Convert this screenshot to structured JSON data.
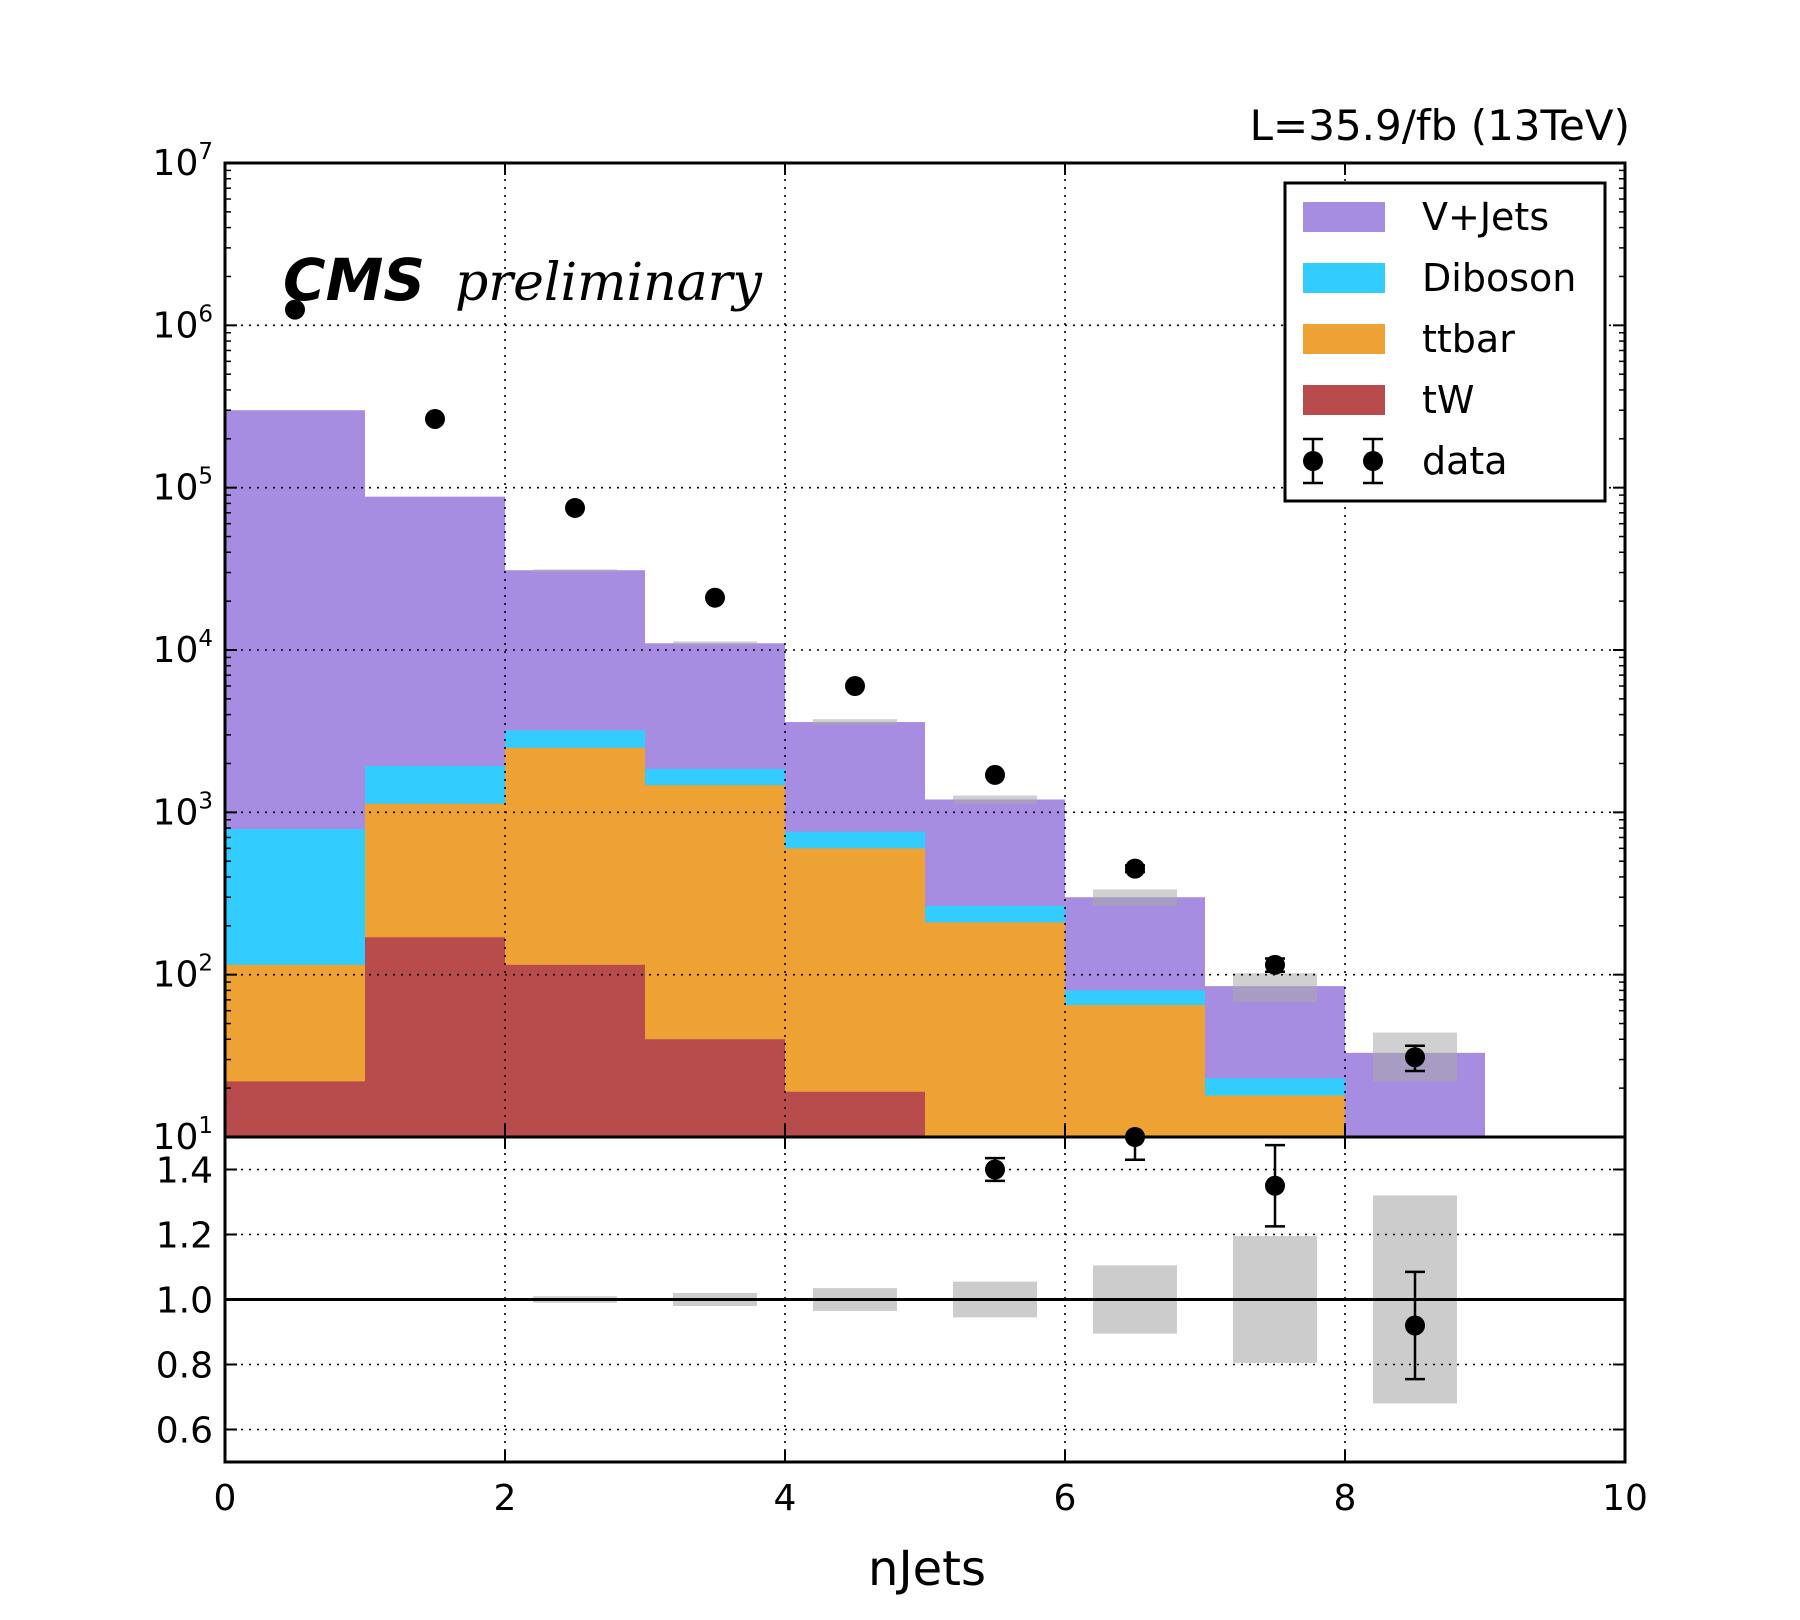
{
  "lumi_text": "L=35.9/fb (13TeV)",
  "experiment": "CMS",
  "status": "preliminary",
  "xlabel": "nJets",
  "colors": {
    "tW": "#b84c4c",
    "ttbar": "#eea233",
    "Diboson": "#33ccff",
    "VJets": "#a78de2",
    "data": "#000000",
    "unc_band": "#aaaaaa"
  },
  "legend": [
    {
      "label": "V+Jets",
      "key": "VJets",
      "kind": "patch"
    },
    {
      "label": "Diboson",
      "key": "Diboson",
      "kind": "patch"
    },
    {
      "label": "ttbar",
      "key": "ttbar",
      "kind": "patch"
    },
    {
      "label": "tW",
      "key": "tW",
      "kind": "patch"
    },
    {
      "label": "data",
      "key": "data",
      "kind": "marker"
    }
  ],
  "chart_data": [
    {
      "type": "bar",
      "subtype": "stacked histogram with data points",
      "yscale": "log",
      "bin_edges": [
        0,
        1,
        2,
        3,
        4,
        5,
        6,
        7,
        8,
        9
      ],
      "xlim": [
        0,
        10
      ],
      "ylim": [
        10,
        10000000
      ],
      "xticks": [
        "0",
        "2",
        "4",
        "6",
        "8",
        "10"
      ],
      "yticks": [
        {
          "base": "10",
          "exp": "1"
        },
        {
          "base": "10",
          "exp": "2"
        },
        {
          "base": "10",
          "exp": "3"
        },
        {
          "base": "10",
          "exp": "4"
        },
        {
          "base": "10",
          "exp": "5"
        },
        {
          "base": "10",
          "exp": "6"
        },
        {
          "base": "10",
          "exp": "7"
        }
      ],
      "grid": true,
      "legend_position": "top-right",
      "series_cumulative_top": [
        {
          "name": "tW",
          "values": [
            22,
            170,
            115,
            40,
            19,
            0,
            0,
            0,
            0
          ]
        },
        {
          "name": "ttbar",
          "values": [
            115,
            1130,
            2500,
            1470,
            600,
            210,
            65,
            18,
            0
          ]
        },
        {
          "name": "Diboson",
          "values": [
            790,
            1930,
            3200,
            1850,
            760,
            265,
            80,
            23,
            0
          ]
        },
        {
          "name": "V+Jets",
          "values": [
            300000,
            88000,
            31000,
            11000,
            3600,
            1200,
            300,
            85,
            33
          ]
        }
      ],
      "mc_uncertainty": [
        {
          "bin": 2,
          "low": 30800,
          "high": 31400
        },
        {
          "bin": 3,
          "low": 10700,
          "high": 11300
        },
        {
          "bin": 4,
          "low": 3450,
          "high": 3750
        },
        {
          "bin": 5,
          "low": 1130,
          "high": 1270
        },
        {
          "bin": 6,
          "low": 265,
          "high": 335
        },
        {
          "bin": 7,
          "low": 68,
          "high": 102
        },
        {
          "bin": 8,
          "low": 22,
          "high": 44
        }
      ],
      "data": {
        "x": [
          0.5,
          1.5,
          2.5,
          3.5,
          4.5,
          5.5,
          6.5,
          7.5,
          8.5
        ],
        "y": [
          1250000,
          265000,
          75000,
          21000,
          6000,
          1700,
          450,
          115,
          31
        ],
        "err": [
          1100,
          510,
          270,
          145,
          77,
          41,
          21,
          10.7,
          5.5
        ]
      }
    },
    {
      "type": "scatter",
      "subtype": "data/MC ratio",
      "xlim": [
        0,
        10
      ],
      "ylim": [
        0.5,
        1.5
      ],
      "yticks": [
        "0.6",
        "0.8",
        "1.0",
        "1.2",
        "1.4"
      ],
      "reference_line": 1.0,
      "grid": true,
      "points": [
        {
          "x": 5.5,
          "y": 1.4,
          "err": 0.035
        },
        {
          "x": 6.5,
          "y": 1.5,
          "err": 0.07
        },
        {
          "x": 7.5,
          "y": 1.35,
          "err": 0.125
        },
        {
          "x": 8.5,
          "y": 0.92,
          "err": 0.165
        }
      ],
      "uncertainty_band": [
        {
          "bin": 2,
          "low": 0.99,
          "high": 1.01
        },
        {
          "bin": 3,
          "low": 0.98,
          "high": 1.02
        },
        {
          "bin": 4,
          "low": 0.965,
          "high": 1.035
        },
        {
          "bin": 5,
          "low": 0.945,
          "high": 1.055
        },
        {
          "bin": 6,
          "low": 0.895,
          "high": 1.105
        },
        {
          "bin": 7,
          "low": 0.805,
          "high": 1.195
        },
        {
          "bin": 8,
          "low": 0.68,
          "high": 1.32
        }
      ]
    }
  ]
}
